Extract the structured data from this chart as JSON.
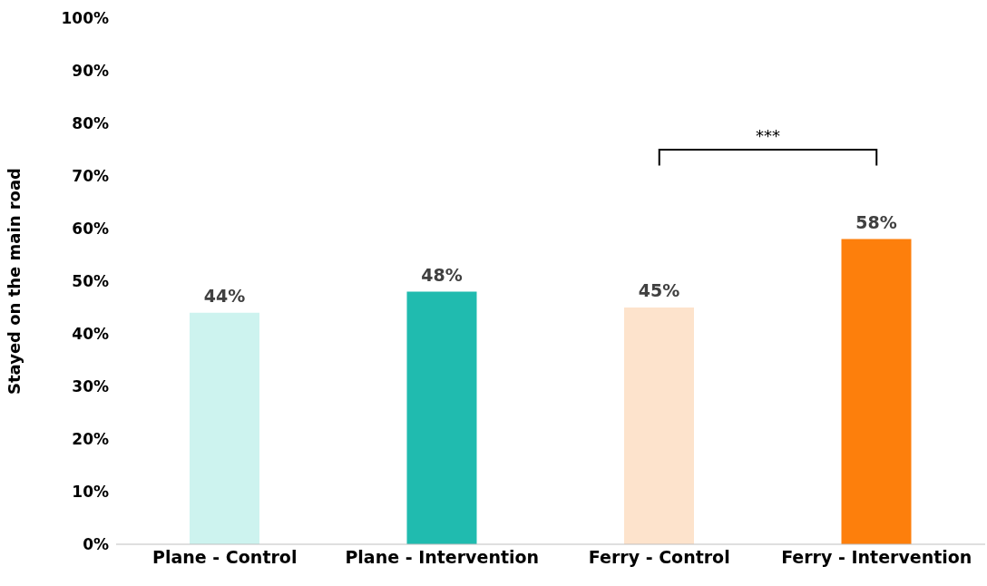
{
  "chart_data": {
    "type": "bar",
    "ylabel": "Stayed on the main road",
    "categories": [
      "Plane - Control",
      "Plane - Intervention",
      "Ferry - Control",
      "Ferry - Intervention"
    ],
    "values": [
      44,
      48,
      45,
      58
    ],
    "colors": [
      "#cdf3ef",
      "#20bbaf",
      "#fde3cc",
      "#fd7f0c"
    ],
    "value_labels": [
      "44%",
      "48%",
      "45%",
      "58%"
    ],
    "ylim": [
      0,
      100
    ],
    "yticks": [
      {
        "value": 0,
        "label": "0%"
      },
      {
        "value": 10,
        "label": "10%"
      },
      {
        "value": 20,
        "label": "20%"
      },
      {
        "value": 30,
        "label": "30%"
      },
      {
        "value": 40,
        "label": "40%"
      },
      {
        "value": 50,
        "label": "50%"
      },
      {
        "value": 60,
        "label": "60%"
      },
      {
        "value": 70,
        "label": "70%"
      },
      {
        "value": 80,
        "label": "80%"
      },
      {
        "value": 90,
        "label": "90%"
      },
      {
        "value": 100,
        "label": "100%"
      }
    ],
    "grid": false,
    "annotations": [
      "***"
    ]
  }
}
